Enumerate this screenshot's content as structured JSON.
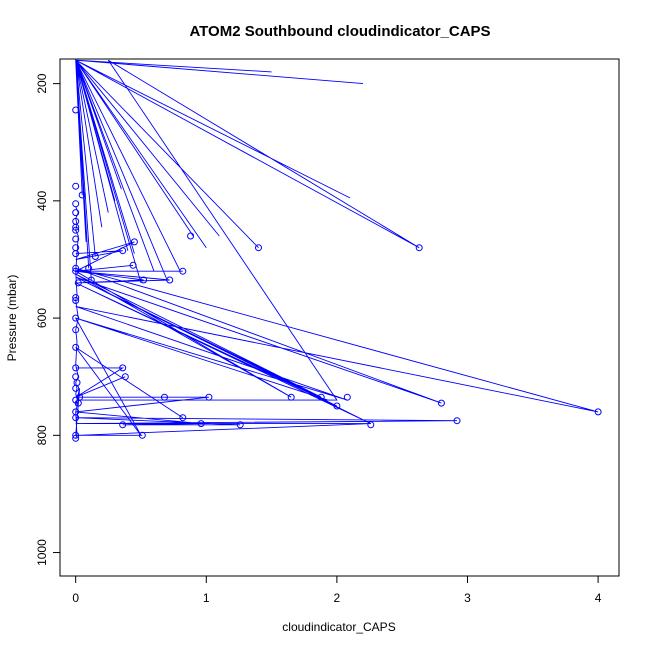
{
  "chart_data": {
    "type": "line",
    "title": "ATOM2 Southbound cloudindicator_CAPS",
    "xlabel": "cloudindicator_CAPS",
    "ylabel": "Pressure (mbar)",
    "xlim": [
      -0.12,
      4.16
    ],
    "ylim": [
      1040,
      158
    ],
    "y_reversed": true,
    "x_ticks": [
      0,
      1,
      2,
      3,
      4
    ],
    "x_tick_labels": [
      "0",
      "1",
      "2",
      "3",
      "4"
    ],
    "y_ticks": [
      200,
      400,
      600,
      800,
      1000
    ],
    "y_tick_labels": [
      "200",
      "400",
      "600",
      "800",
      "1000"
    ],
    "grid": false,
    "legend": "none",
    "series_color": "#0000ff",
    "markers": "open-circle",
    "series": [
      {
        "x": [
          0,
          0.02,
          0,
          0.05,
          0,
          0.1,
          0,
          0.15,
          0,
          0.2,
          0,
          0.25,
          0,
          0.3,
          0,
          0.35,
          0,
          0.12,
          0,
          0.08,
          0,
          0.4,
          0,
          0.45,
          0,
          0.5,
          0,
          0.6,
          0,
          0.7,
          0,
          0.8,
          0,
          0.9,
          0,
          1.0,
          0,
          1.1,
          0,
          1.4,
          0,
          1.5,
          0,
          2.1,
          0,
          2.2,
          0,
          2.63,
          0.25,
          2.0,
          0.02
        ],
        "y": [
          160,
          245,
          160,
          390,
          160,
          515,
          160,
          495,
          160,
          445,
          160,
          420,
          160,
          400,
          160,
          380,
          160,
          535,
          160,
          470,
          160,
          485,
          160,
          490,
          160,
          540,
          160,
          520,
          160,
          535,
          160,
          520,
          160,
          460,
          160,
          480,
          160,
          460,
          160,
          480,
          160,
          180,
          160,
          395,
          160,
          200,
          160,
          480,
          160,
          740,
          740
        ]
      },
      {
        "x": [
          0,
          0.36,
          0,
          0.45,
          0,
          0.44,
          0,
          0.52,
          0,
          0.72,
          0,
          0.82,
          0,
          1.65,
          0,
          1.88,
          0,
          2.0,
          0,
          2.26,
          0,
          2.8,
          0,
          4.0,
          0,
          2.08,
          0,
          1.93,
          0,
          0.5,
          0,
          0.82
        ],
        "y": [
          490,
          485,
          500,
          470,
          520,
          510,
          520,
          535,
          540,
          535,
          520,
          520,
          520,
          735,
          525,
          735,
          530,
          750,
          540,
          780,
          530,
          745,
          515,
          760,
          580,
          740,
          600,
          740,
          600,
          800,
          650,
          770
        ]
      },
      {
        "x": [
          0,
          0.36,
          0,
          0.38,
          0,
          0.68,
          0.05,
          1.02,
          0,
          0.96,
          0.36,
          1.26,
          0,
          2.92,
          0,
          2.26,
          0.02,
          0.51,
          0,
          0.03,
          0
        ],
        "y": [
          685,
          685,
          735,
          700,
          735,
          735,
          735,
          735,
          760,
          780,
          782,
          782,
          770,
          775,
          780,
          780,
          800,
          800,
          800,
          720,
          750
        ]
      },
      {
        "x": [
          0,
          0.02,
          0,
          0.01,
          0,
          0.02,
          0,
          0.01,
          0,
          0.02,
          0,
          0.01,
          0,
          0.02,
          0,
          0.01,
          0,
          0.02,
          0,
          0.01,
          0
        ],
        "y": [
          410,
          420,
          430,
          440,
          450,
          460,
          520,
          560,
          570,
          600,
          620,
          640,
          680,
          700,
          710,
          720,
          730,
          740,
          760,
          800,
          805
        ]
      }
    ],
    "points": {
      "x": [
        0,
        0.05,
        0.1,
        0.15,
        0.36,
        0.45,
        0.44,
        0.52,
        0.72,
        0.82,
        0.88,
        1.4,
        2.63,
        1.65,
        1.88,
        2.0,
        2.08,
        2.8,
        4.0,
        2.26,
        2.92,
        0.36,
        0.38,
        0.68,
        1.02,
        0.96,
        1.26,
        0.82,
        0.36,
        0.51,
        0,
        0,
        0,
        0,
        0,
        0,
        0,
        0,
        0,
        0,
        0,
        0,
        0,
        0,
        0,
        0,
        0,
        0,
        0,
        0,
        0.02,
        0.03,
        0,
        0,
        0,
        0.01,
        0,
        0.02,
        0.12
      ],
      "y": [
        245,
        390,
        515,
        495,
        485,
        470,
        510,
        535,
        535,
        520,
        460,
        480,
        480,
        735,
        735,
        750,
        735,
        745,
        760,
        782,
        775,
        685,
        700,
        735,
        735,
        780,
        782,
        770,
        782,
        800,
        375,
        405,
        420,
        435,
        445,
        450,
        465,
        480,
        490,
        515,
        520,
        565,
        570,
        600,
        620,
        685,
        700,
        720,
        740,
        760,
        745,
        735,
        800,
        805,
        770,
        710,
        650,
        540,
        535
      ]
    }
  }
}
